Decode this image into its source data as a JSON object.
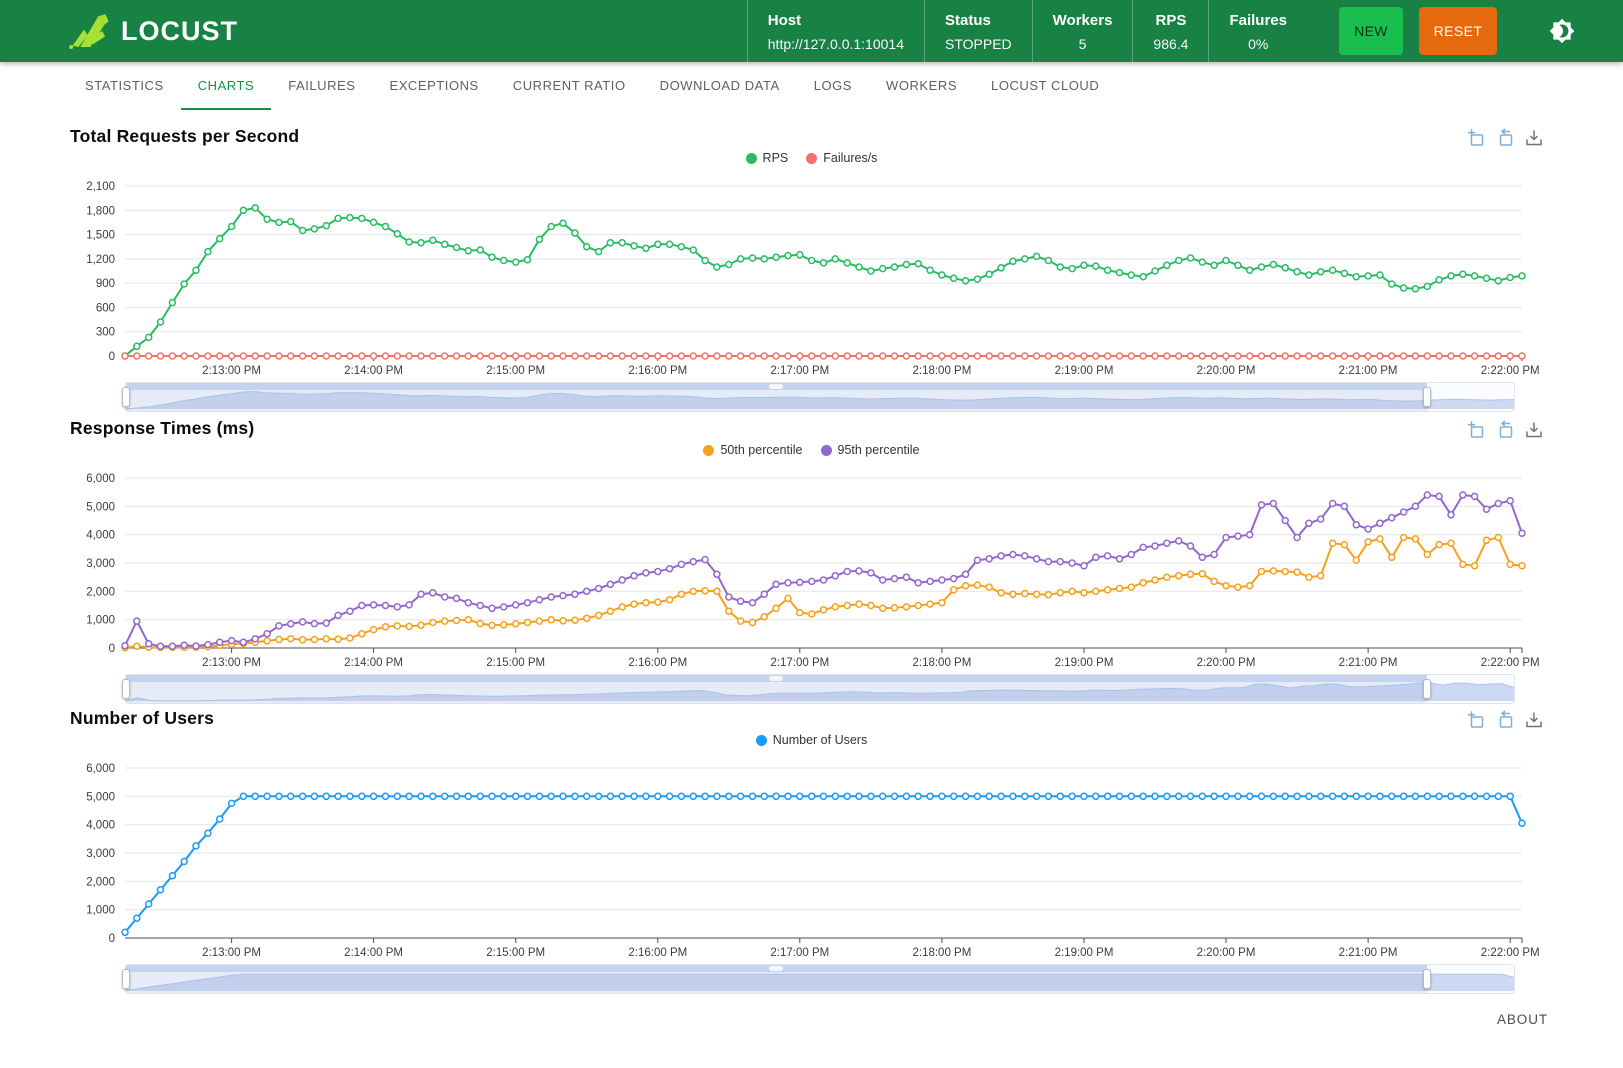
{
  "header": {
    "brand": "LOCUST",
    "stats": [
      {
        "label": "Host",
        "value": "http://127.0.0.1:10014",
        "align": "left"
      },
      {
        "label": "Status",
        "value": "STOPPED",
        "align": "left"
      },
      {
        "label": "Workers",
        "value": "5",
        "align": "center"
      },
      {
        "label": "RPS",
        "value": "986.4",
        "align": "center"
      },
      {
        "label": "Failures",
        "value": "0%",
        "align": "center"
      }
    ],
    "new_button": "NEW",
    "reset_button": "RESET"
  },
  "nav": {
    "tabs": [
      "STATISTICS",
      "CHARTS",
      "FAILURES",
      "EXCEPTIONS",
      "CURRENT RATIO",
      "DOWNLOAD DATA",
      "LOGS",
      "WORKERS",
      "LOCUST CLOUD"
    ],
    "active_tab": "CHARTS"
  },
  "footer": {
    "about_label": "ABOUT"
  },
  "colors": {
    "header_bg": "#188144",
    "new_button_bg": "#1abe4e",
    "reset_button_bg": "#e7690e",
    "logo_green": "#a5e136",
    "active_tab_green": "#149243",
    "rps_line": "#28bd61",
    "failures_line": "#f2716a",
    "p50_line": "#f7a11a",
    "p95_line": "#9467ce",
    "users_line": "#199bfa",
    "toolbox_blue": "#7fb0d8",
    "toolbox_gray": "#697585"
  },
  "chart_data": [
    {
      "type": "line",
      "title": "Total Requests per Second",
      "ylim": [
        0,
        2100
      ],
      "ystep": 300,
      "grid": true,
      "legend_position": "top-center",
      "points": 119,
      "x_tick_labels": [
        "2:13:00 PM",
        "2:14:00 PM",
        "2:15:00 PM",
        "2:16:00 PM",
        "2:17:00 PM",
        "2:18:00 PM",
        "2:19:00 PM",
        "2:20:00 PM",
        "2:21:00 PM",
        "2:22:00 PM"
      ],
      "x_tick_start_index": 9,
      "x_tick_every": 12,
      "series": [
        {
          "name": "RPS",
          "color": "#28bd61",
          "values": [
            0,
            120,
            230,
            420,
            660,
            890,
            1060,
            1290,
            1450,
            1600,
            1800,
            1830,
            1690,
            1650,
            1660,
            1550,
            1570,
            1610,
            1700,
            1710,
            1700,
            1650,
            1600,
            1510,
            1410,
            1400,
            1430,
            1380,
            1340,
            1300,
            1310,
            1220,
            1180,
            1160,
            1190,
            1440,
            1600,
            1640,
            1520,
            1350,
            1290,
            1400,
            1400,
            1360,
            1330,
            1380,
            1380,
            1350,
            1310,
            1180,
            1100,
            1130,
            1200,
            1210,
            1200,
            1220,
            1240,
            1250,
            1180,
            1150,
            1200,
            1150,
            1100,
            1050,
            1080,
            1100,
            1130,
            1140,
            1060,
            1000,
            960,
            930,
            950,
            1010,
            1090,
            1170,
            1200,
            1230,
            1180,
            1100,
            1080,
            1120,
            1110,
            1060,
            1030,
            1000,
            980,
            1050,
            1120,
            1180,
            1210,
            1160,
            1120,
            1180,
            1120,
            1060,
            1100,
            1130,
            1090,
            1040,
            1000,
            1040,
            1060,
            1020,
            980,
            990,
            1000,
            890,
            840,
            830,
            860,
            940,
            990,
            1010,
            990,
            960,
            930,
            970,
            990
          ]
        },
        {
          "name": "Failures/s",
          "color": "#f2716a",
          "values": [
            0,
            0,
            0,
            0,
            0,
            0,
            0,
            0,
            0,
            0,
            0,
            0,
            0,
            0,
            0,
            0,
            0,
            0,
            0,
            0,
            0,
            0,
            0,
            0,
            0,
            0,
            0,
            0,
            0,
            0,
            0,
            0,
            0,
            0,
            0,
            0,
            0,
            0,
            0,
            0,
            0,
            0,
            0,
            0,
            0,
            0,
            0,
            0,
            0,
            0,
            0,
            0,
            0,
            0,
            0,
            0,
            0,
            0,
            0,
            0,
            0,
            0,
            0,
            0,
            0,
            0,
            0,
            0,
            0,
            0,
            0,
            0,
            0,
            0,
            0,
            0,
            0,
            0,
            0,
            0,
            0,
            0,
            0,
            0,
            0,
            0,
            0,
            0,
            0,
            0,
            0,
            0,
            0,
            0,
            0,
            0,
            0,
            0,
            0,
            0,
            0,
            0,
            0,
            0,
            0,
            0,
            0,
            0,
            0,
            0,
            0,
            0,
            0,
            0,
            0,
            0,
            0,
            0,
            0
          ]
        }
      ],
      "slider": {
        "start_frac": 0,
        "end_frac": 0.937,
        "shadow_series": 0
      }
    },
    {
      "type": "line",
      "title": "Response Times (ms)",
      "ylim": [
        0,
        6000
      ],
      "ystep": 1000,
      "grid": true,
      "legend_position": "top-center",
      "points": 119,
      "x_tick_labels": [
        "2:13:00 PM",
        "2:14:00 PM",
        "2:15:00 PM",
        "2:16:00 PM",
        "2:17:00 PM",
        "2:18:00 PM",
        "2:19:00 PM",
        "2:20:00 PM",
        "2:21:00 PM",
        "2:22:00 PM"
      ],
      "x_tick_start_index": 9,
      "x_tick_every": 12,
      "series": [
        {
          "name": "50th percentile",
          "color": "#f7a11a",
          "values": [
            10,
            60,
            30,
            20,
            20,
            30,
            30,
            50,
            90,
            130,
            160,
            200,
            250,
            300,
            330,
            290,
            300,
            320,
            310,
            350,
            500,
            650,
            750,
            780,
            760,
            800,
            900,
            950,
            970,
            1000,
            860,
            800,
            820,
            850,
            900,
            950,
            1000,
            960,
            980,
            1050,
            1150,
            1300,
            1450,
            1550,
            1600,
            1620,
            1700,
            1900,
            2000,
            2020,
            2000,
            1300,
            950,
            900,
            1100,
            1400,
            1750,
            1250,
            1200,
            1350,
            1450,
            1500,
            1550,
            1500,
            1400,
            1420,
            1450,
            1500,
            1550,
            1600,
            2050,
            2200,
            2220,
            2150,
            1950,
            1900,
            1920,
            1900,
            1880,
            1950,
            2000,
            1950,
            2000,
            2050,
            2100,
            2150,
            2300,
            2400,
            2500,
            2550,
            2600,
            2620,
            2350,
            2200,
            2150,
            2200,
            2700,
            2720,
            2700,
            2680,
            2500,
            2550,
            3700,
            3650,
            3100,
            3750,
            3850,
            3200,
            3900,
            3850,
            3300,
            3650,
            3700,
            2950,
            2900,
            3800,
            3900,
            2950,
            2900
          ]
        },
        {
          "name": "95th percentile",
          "color": "#9467ce",
          "values": [
            80,
            950,
            150,
            60,
            60,
            100,
            70,
            120,
            200,
            260,
            200,
            320,
            500,
            780,
            850,
            920,
            860,
            880,
            1150,
            1300,
            1500,
            1520,
            1500,
            1450,
            1520,
            1900,
            1950,
            1800,
            1750,
            1600,
            1500,
            1400,
            1450,
            1520,
            1600,
            1700,
            1800,
            1850,
            1900,
            2000,
            2100,
            2250,
            2400,
            2550,
            2650,
            2700,
            2800,
            2950,
            3050,
            3120,
            2600,
            1800,
            1650,
            1600,
            1900,
            2250,
            2300,
            2320,
            2350,
            2400,
            2550,
            2700,
            2720,
            2650,
            2400,
            2450,
            2500,
            2300,
            2350,
            2400,
            2450,
            2600,
            3100,
            3150,
            3250,
            3300,
            3250,
            3150,
            3050,
            3050,
            3000,
            2900,
            3200,
            3250,
            3150,
            3300,
            3550,
            3600,
            3700,
            3780,
            3600,
            3200,
            3300,
            3900,
            3950,
            4000,
            5050,
            5100,
            4500,
            3900,
            4400,
            4550,
            5100,
            5000,
            4350,
            4200,
            4400,
            4600,
            4800,
            5000,
            5400,
            5350,
            4700,
            5400,
            5350,
            4900,
            5100,
            5200,
            4050
          ]
        }
      ],
      "slider": {
        "start_frac": 0,
        "end_frac": 0.937,
        "shadow_series": 1
      }
    },
    {
      "type": "line",
      "title": "Number of Users",
      "ylim": [
        0,
        6000
      ],
      "ystep": 1000,
      "grid": true,
      "legend_position": "top-center",
      "points": 119,
      "x_tick_labels": [
        "2:13:00 PM",
        "2:14:00 PM",
        "2:15:00 PM",
        "2:16:00 PM",
        "2:17:00 PM",
        "2:18:00 PM",
        "2:19:00 PM",
        "2:20:00 PM",
        "2:21:00 PM",
        "2:22:00 PM"
      ],
      "x_tick_start_index": 9,
      "x_tick_every": 12,
      "series": [
        {
          "name": "Number of Users",
          "color": "#199bfa",
          "values": [
            200,
            700,
            1200,
            1700,
            2200,
            2700,
            3250,
            3700,
            4200,
            4750,
            5000,
            5000,
            5000,
            5000,
            5000,
            5000,
            5000,
            5000,
            5000,
            5000,
            5000,
            5000,
            5000,
            5000,
            5000,
            5000,
            5000,
            5000,
            5000,
            5000,
            5000,
            5000,
            5000,
            5000,
            5000,
            5000,
            5000,
            5000,
            5000,
            5000,
            5000,
            5000,
            5000,
            5000,
            5000,
            5000,
            5000,
            5000,
            5000,
            5000,
            5000,
            5000,
            5000,
            5000,
            5000,
            5000,
            5000,
            5000,
            5000,
            5000,
            5000,
            5000,
            5000,
            5000,
            5000,
            5000,
            5000,
            5000,
            5000,
            5000,
            5000,
            5000,
            5000,
            5000,
            5000,
            5000,
            5000,
            5000,
            5000,
            5000,
            5000,
            5000,
            5000,
            5000,
            5000,
            5000,
            5000,
            5000,
            5000,
            5000,
            5000,
            5000,
            5000,
            5000,
            5000,
            5000,
            5000,
            5000,
            5000,
            5000,
            5000,
            5000,
            5000,
            5000,
            5000,
            5000,
            5000,
            5000,
            5000,
            5000,
            5000,
            5000,
            5000,
            5000,
            5000,
            5000,
            5000,
            5000,
            4050
          ]
        }
      ],
      "slider": {
        "start_frac": 0,
        "end_frac": 0.937,
        "shadow_series": 0
      }
    }
  ]
}
